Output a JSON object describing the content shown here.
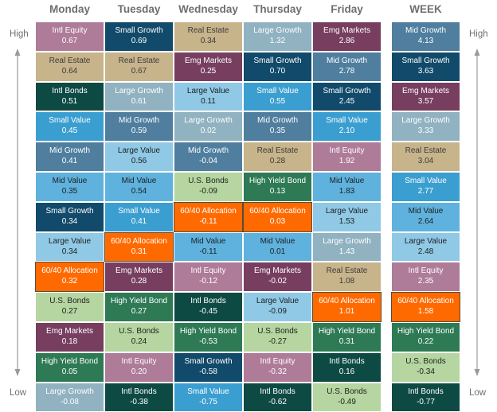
{
  "chart_data": {
    "type": "table",
    "axis_labels": {
      "top": "High",
      "bottom": "Low"
    },
    "columns": [
      {
        "day": "Monday",
        "entries": [
          {
            "asset": "Intl Equity",
            "value": "0.67"
          },
          {
            "asset": "Real Estate",
            "value": "0.64"
          },
          {
            "asset": "Intl Bonds",
            "value": "0.51"
          },
          {
            "asset": "Small Value",
            "value": "0.45"
          },
          {
            "asset": "Mid Growth",
            "value": "0.41"
          },
          {
            "asset": "Mid Value",
            "value": "0.35"
          },
          {
            "asset": "Small Growth",
            "value": "0.34"
          },
          {
            "asset": "Large Value",
            "value": "0.34"
          },
          {
            "asset": "60/40 Allocation",
            "value": "0.32"
          },
          {
            "asset": "U.S. Bonds",
            "value": "0.27"
          },
          {
            "asset": "Emg Markets",
            "value": "0.18"
          },
          {
            "asset": "High Yield Bond",
            "value": "0.05"
          },
          {
            "asset": "Large Growth",
            "value": "-0.08"
          }
        ]
      },
      {
        "day": "Tuesday",
        "entries": [
          {
            "asset": "Small Growth",
            "value": "0.69"
          },
          {
            "asset": "Real Estate",
            "value": "0.67"
          },
          {
            "asset": "Large Growth",
            "value": "0.61"
          },
          {
            "asset": "Mid Growth",
            "value": "0.59"
          },
          {
            "asset": "Large Value",
            "value": "0.56"
          },
          {
            "asset": "Mid Value",
            "value": "0.54"
          },
          {
            "asset": "Small Value",
            "value": "0.41"
          },
          {
            "asset": "60/40 Allocation",
            "value": "0.31"
          },
          {
            "asset": "Emg Markets",
            "value": "0.28"
          },
          {
            "asset": "High Yield Bond",
            "value": "0.27"
          },
          {
            "asset": "U.S. Bonds",
            "value": "0.24"
          },
          {
            "asset": "Intl Equity",
            "value": "0.20"
          },
          {
            "asset": "Intl Bonds",
            "value": "-0.38"
          }
        ]
      },
      {
        "day": "Wednesday",
        "entries": [
          {
            "asset": "Real Estate",
            "value": "0.34"
          },
          {
            "asset": "Emg Markets",
            "value": "0.25"
          },
          {
            "asset": "Large Value",
            "value": "0.11"
          },
          {
            "asset": "Large Growth",
            "value": "0.02"
          },
          {
            "asset": "Mid Growth",
            "value": "-0.04"
          },
          {
            "asset": "U.S. Bonds",
            "value": "-0.09"
          },
          {
            "asset": "60/40 Allocation",
            "value": "-0.11"
          },
          {
            "asset": "Mid Value",
            "value": "-0.11"
          },
          {
            "asset": "Intl Equity",
            "value": "-0.12"
          },
          {
            "asset": "Intl Bonds",
            "value": "-0.45"
          },
          {
            "asset": "High Yield Bond",
            "value": "-0.53"
          },
          {
            "asset": "Small Growth",
            "value": "-0.58"
          },
          {
            "asset": "Small Value",
            "value": "-0.75"
          }
        ]
      },
      {
        "day": "Thursday",
        "entries": [
          {
            "asset": "Large Growth",
            "value": "1.32"
          },
          {
            "asset": "Small Growth",
            "value": "0.70"
          },
          {
            "asset": "Small Value",
            "value": "0.55"
          },
          {
            "asset": "Mid Growth",
            "value": "0.35"
          },
          {
            "asset": "Real Estate",
            "value": "0.28"
          },
          {
            "asset": "High Yield Bond",
            "value": "0.13"
          },
          {
            "asset": "60/40 Allocation",
            "value": "0.03"
          },
          {
            "asset": "Mid Value",
            "value": "0.01"
          },
          {
            "asset": "Emg Markets",
            "value": "-0.02"
          },
          {
            "asset": "Large Value",
            "value": "-0.09"
          },
          {
            "asset": "U.S. Bonds",
            "value": "-0.27"
          },
          {
            "asset": "Intl Equity",
            "value": "-0.32"
          },
          {
            "asset": "Intl Bonds",
            "value": "-0.62"
          }
        ]
      },
      {
        "day": "Friday",
        "entries": [
          {
            "asset": "Emg Markets",
            "value": "2.86"
          },
          {
            "asset": "Mid Growth",
            "value": "2.78"
          },
          {
            "asset": "Small Growth",
            "value": "2.45"
          },
          {
            "asset": "Small Value",
            "value": "2.10"
          },
          {
            "asset": "Intl Equity",
            "value": "1.92"
          },
          {
            "asset": "Mid Value",
            "value": "1.83"
          },
          {
            "asset": "Large Value",
            "value": "1.53"
          },
          {
            "asset": "Large Growth",
            "value": "1.43"
          },
          {
            "asset": "Real Estate",
            "value": "1.08"
          },
          {
            "asset": "60/40 Allocation",
            "value": "1.01"
          },
          {
            "asset": "High Yield Bond",
            "value": "0.31"
          },
          {
            "asset": "Intl Bonds",
            "value": "0.16"
          },
          {
            "asset": "U.S. Bonds",
            "value": "-0.49"
          }
        ]
      },
      {
        "day": "WEEK",
        "entries": [
          {
            "asset": "Mid Growth",
            "value": "4.13"
          },
          {
            "asset": "Small Growth",
            "value": "3.63"
          },
          {
            "asset": "Emg Markets",
            "value": "3.57"
          },
          {
            "asset": "Large Growth",
            "value": "3.33"
          },
          {
            "asset": "Real Estate",
            "value": "3.04"
          },
          {
            "asset": "Small Value",
            "value": "2.77"
          },
          {
            "asset": "Mid Value",
            "value": "2.64"
          },
          {
            "asset": "Large Value",
            "value": "2.48"
          },
          {
            "asset": "Intl Equity",
            "value": "2.35"
          },
          {
            "asset": "60/40 Allocation",
            "value": "1.58"
          },
          {
            "asset": "High Yield Bond",
            "value": "0.22"
          },
          {
            "asset": "U.S. Bonds",
            "value": "-0.34"
          },
          {
            "asset": "Intl Bonds",
            "value": "-0.77"
          }
        ]
      }
    ]
  },
  "asset_colors": {
    "Intl Equity": "#ae7b98",
    "Real Estate": "#c8b48b",
    "Intl Bonds": "#0e4a44",
    "Small Value": "#3b9ed0",
    "Mid Growth": "#4f7e9e",
    "Mid Value": "#5fb2dd",
    "Small Growth": "#114a6a",
    "Large Value": "#90c9e6",
    "60/40 Allocation": "#ff6a00",
    "U.S. Bonds": "#b5d6a0",
    "Emg Markets": "#773e60",
    "High Yield Bond": "#2e7a55",
    "Large Growth": "#90b2c1"
  },
  "asset_text_colors": {
    "Intl Equity": "#ffffff",
    "Real Estate": "#3a3a3a",
    "Intl Bonds": "#ffffff",
    "Small Value": "#ffffff",
    "Mid Growth": "#ffffff",
    "Mid Value": "#1f1f1f",
    "Small Growth": "#ffffff",
    "Large Value": "#1f1f1f",
    "60/40 Allocation": "#ffffff",
    "U.S. Bonds": "#1f1f1f",
    "Emg Markets": "#ffffff",
    "High Yield Bond": "#ffffff",
    "Large Growth": "#ffffff"
  },
  "highlight_asset": "60/40 Allocation",
  "axis_color": "#9a9a9a"
}
